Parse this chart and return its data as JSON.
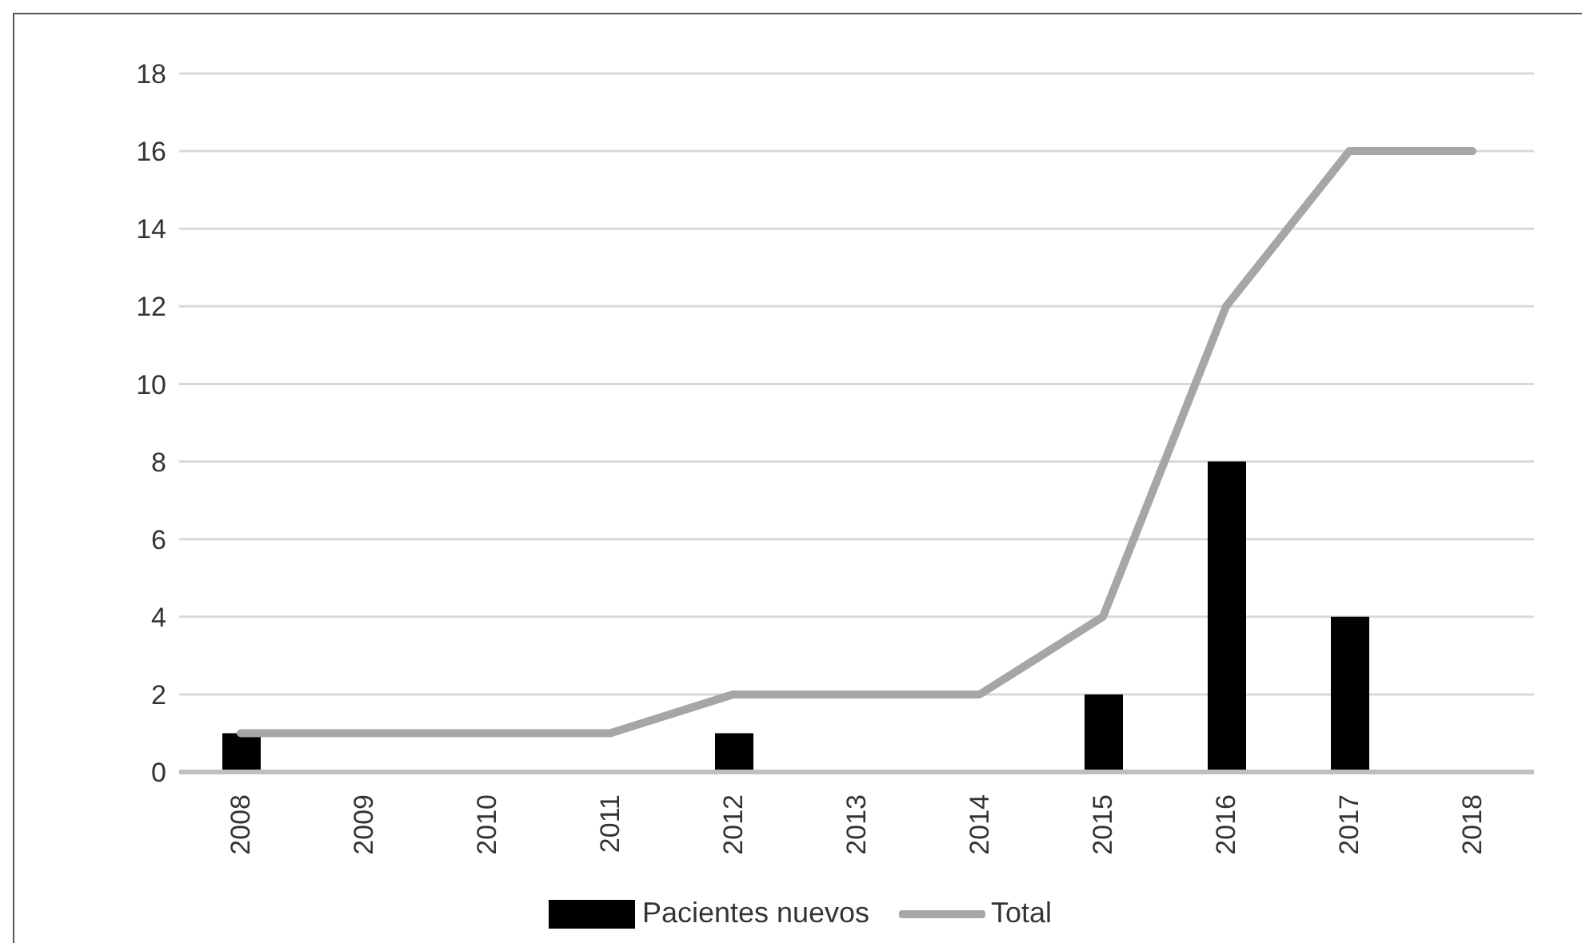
{
  "chart_data": {
    "type": "bar",
    "categories": [
      "2008",
      "2009",
      "2010",
      "2011",
      "2012",
      "2013",
      "2014",
      "2015",
      "2016",
      "2017",
      "2018"
    ],
    "series": [
      {
        "name": "Pacientes nuevos",
        "color": "#000000",
        "values": [
          1,
          0,
          0,
          0,
          1,
          0,
          0,
          2,
          8,
          4,
          0
        ]
      },
      {
        "name": "Total",
        "type": "line",
        "color": "#a6a6a6",
        "values": [
          1,
          1,
          1,
          1,
          2,
          2,
          2,
          4,
          12,
          16,
          16
        ]
      }
    ],
    "ylim": [
      0,
      18
    ],
    "yticks": [
      0,
      2,
      4,
      6,
      8,
      10,
      12,
      14,
      16,
      18
    ],
    "grid": "y",
    "legend": "bottom",
    "marker": "none"
  }
}
